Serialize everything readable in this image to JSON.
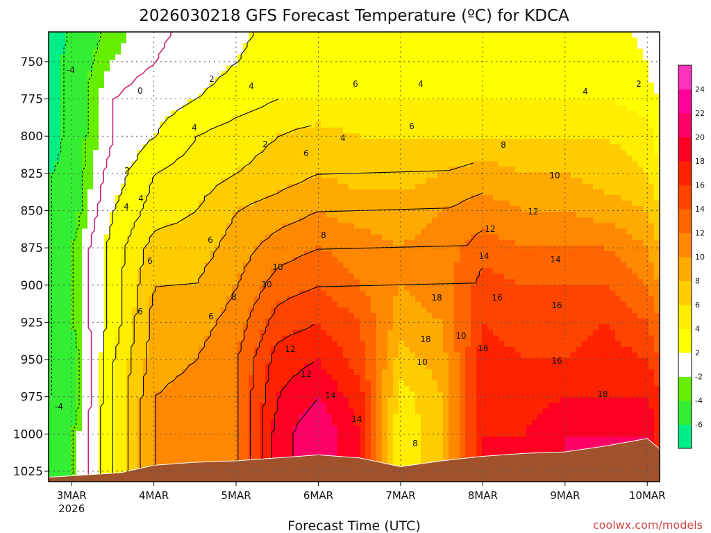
{
  "chart_data": {
    "type": "heatmap",
    "title": "2026030218 GFS Forecast Temperature (ºC) for KDCA",
    "xlabel": "Forecast Time (UTC)",
    "ylabel": "",
    "x_ticks": [
      "3MAR",
      "4MAR",
      "5MAR",
      "6MAR",
      "7MAR",
      "8MAR",
      "9MAR",
      "10MAR"
    ],
    "x_tick_sub": "2026",
    "x_range_days": [
      2.72,
      10.15
    ],
    "y_ticks": [
      750,
      775,
      800,
      825,
      850,
      875,
      900,
      925,
      950,
      975,
      1000,
      1025
    ],
    "y_range_hpa": [
      730,
      1032
    ],
    "y_scale": "pressure (inverted)",
    "grid": true,
    "colorbar": {
      "placement": "right",
      "labels": [
        "-6",
        "-4",
        "-2",
        "2",
        "4",
        "6",
        "8",
        "10",
        "12",
        "14",
        "16",
        "18",
        "20",
        "22",
        "24"
      ],
      "colors": [
        "#00ee88",
        "#33ee33",
        "#66ee00",
        "#ffffff",
        "#ffff00",
        "#ffee00",
        "#ffcc00",
        "#ffaa00",
        "#ff8800",
        "#ff6600",
        "#ff4400",
        "#ff2200",
        "#ff0022",
        "#ff0066",
        "#ff0099",
        "#ff33bb"
      ]
    },
    "temperature_sections": [
      {
        "day": 2.75,
        "temps": [
          -5,
          -5,
          -5,
          -4,
          -4,
          -4,
          -4,
          -4,
          -4,
          -4,
          -3,
          -3
        ]
      },
      {
        "day": 3.0,
        "temps": [
          -3,
          -3,
          -3,
          -3,
          -3,
          -2,
          -2,
          -2,
          -3,
          -3,
          -2,
          -2
        ]
      },
      {
        "day": 3.5,
        "temps": [
          -1,
          0,
          0,
          1,
          2,
          3,
          3,
          3,
          4,
          4,
          4,
          4
        ]
      },
      {
        "day": 4.0,
        "temps": [
          0,
          1,
          2,
          4,
          5,
          7,
          8,
          9,
          9,
          10,
          10,
          10
        ]
      },
      {
        "day": 4.5,
        "temps": [
          1,
          2,
          4,
          5,
          6,
          7,
          8,
          9,
          10,
          11,
          11,
          11
        ]
      },
      {
        "day": 5.0,
        "temps": [
          2,
          3,
          5,
          6,
          8,
          9,
          10,
          11,
          12,
          12,
          12,
          12
        ]
      },
      {
        "day": 5.5,
        "temps": [
          3,
          4,
          6,
          7,
          9,
          11,
          13,
          15,
          17,
          18,
          19,
          19
        ]
      },
      {
        "day": 6.0,
        "temps": [
          3,
          4,
          7,
          8,
          10,
          12,
          14,
          16,
          18,
          20,
          22,
          22
        ]
      },
      {
        "day": 6.5,
        "temps": [
          3,
          4,
          6,
          7,
          9,
          11,
          12,
          14,
          15,
          17,
          18,
          18
        ]
      },
      {
        "day": 7.0,
        "temps": [
          3,
          4,
          6,
          7,
          9,
          10,
          10,
          9,
          7,
          5,
          4,
          4
        ]
      },
      {
        "day": 7.5,
        "temps": [
          3,
          4,
          6,
          8,
          10,
          11,
          11,
          10,
          9,
          8,
          8,
          8
        ]
      },
      {
        "day": 8.0,
        "temps": [
          3,
          4,
          6,
          9,
          11,
          13,
          15,
          16,
          17,
          18,
          18,
          18
        ]
      },
      {
        "day": 8.5,
        "temps": [
          3,
          4,
          6,
          8,
          10,
          12,
          14,
          15,
          16,
          17,
          18,
          18
        ]
      },
      {
        "day": 9.0,
        "temps": [
          3,
          4,
          6,
          8,
          10,
          12,
          14,
          15,
          16,
          18,
          20,
          20
        ]
      },
      {
        "day": 9.5,
        "temps": [
          3,
          4,
          6,
          7,
          9,
          12,
          14,
          16,
          17,
          18,
          20,
          20
        ]
      },
      {
        "day": 10.0,
        "temps": [
          2,
          3,
          5,
          6,
          8,
          10,
          12,
          14,
          16,
          18,
          20,
          20
        ]
      },
      {
        "day": 10.15,
        "temps": [
          -1,
          2,
          3,
          4,
          6,
          8,
          10,
          12,
          14,
          16,
          17,
          17
        ]
      }
    ],
    "contour_labels": [
      "-4",
      "-4",
      "0",
      "2",
      "2",
      "4",
      "4",
      "4",
      "4",
      "2",
      "4",
      "6",
      "6",
      "6",
      "6",
      "6",
      "8",
      "8",
      "10",
      "10",
      "12",
      "12",
      "14",
      "14",
      "16",
      "16",
      "18",
      "18",
      "10",
      "8",
      "6",
      "4",
      "10",
      "12",
      "14",
      "16",
      "18",
      "16",
      "14",
      "12",
      "10",
      "8",
      "6",
      "4",
      "2"
    ]
  },
  "credit": "coolwx.com/models"
}
